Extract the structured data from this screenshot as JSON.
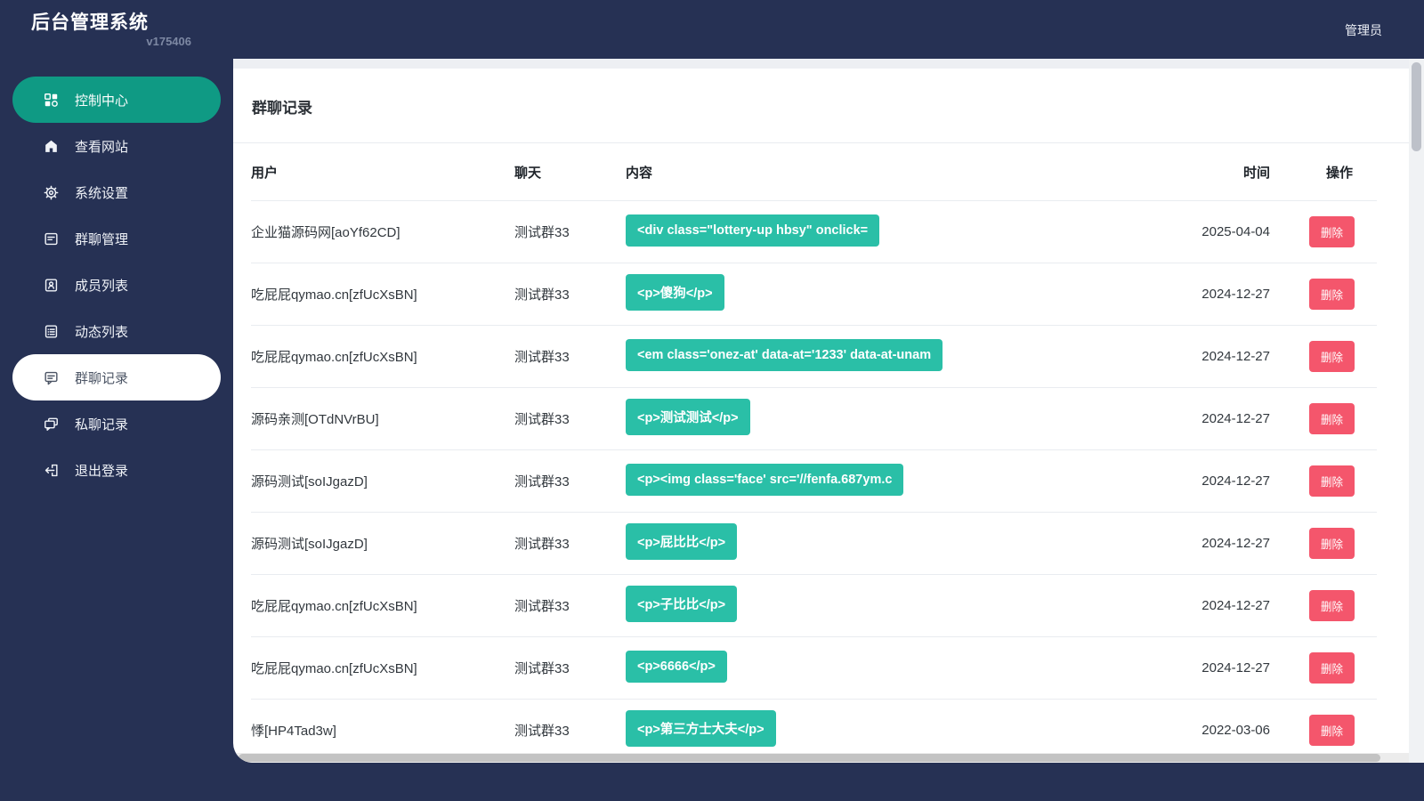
{
  "app": {
    "title": "后台管理系统",
    "version": "v175406",
    "user": "管理员"
  },
  "sidebar": {
    "items": [
      {
        "name": "control-center",
        "label": "控制中心",
        "icon": "dashboard-grid-icon",
        "state": "active-teal"
      },
      {
        "name": "view-site",
        "label": "查看网站",
        "icon": "home-icon",
        "state": ""
      },
      {
        "name": "system-settings",
        "label": "系统设置",
        "icon": "gear-icon",
        "state": ""
      },
      {
        "name": "group-manage",
        "label": "群聊管理",
        "icon": "document-lines-icon",
        "state": ""
      },
      {
        "name": "member-list",
        "label": "成员列表",
        "icon": "member-card-icon",
        "state": ""
      },
      {
        "name": "feed-list",
        "label": "动态列表",
        "icon": "list-table-icon",
        "state": ""
      },
      {
        "name": "group-chat-log",
        "label": "群聊记录",
        "icon": "chat-lines-icon",
        "state": "active-white"
      },
      {
        "name": "private-chat-log",
        "label": "私聊记录",
        "icon": "chat-double-icon",
        "state": ""
      },
      {
        "name": "logout",
        "label": "退出登录",
        "icon": "logout-icon",
        "state": ""
      }
    ]
  },
  "page": {
    "title": "群聊记录"
  },
  "table": {
    "headers": {
      "user": "用户",
      "chat": "聊天",
      "content": "内容",
      "time": "时间",
      "action": "操作"
    },
    "delete_label": "删除",
    "rows": [
      {
        "user": "企业猫源码网[aoYf62CD]",
        "chat": "测试群33",
        "content": "<div class=\"lottery-up hbsy\" onclick=",
        "time": "2025-04-04"
      },
      {
        "user": "吃屁屁qymao.cn[zfUcXsBN]",
        "chat": "测试群33",
        "content": "<p>傻狗</p>",
        "time": "2024-12-27"
      },
      {
        "user": "吃屁屁qymao.cn[zfUcXsBN]",
        "chat": "测试群33",
        "content": "<em class='onez-at' data-at='1233' data-at-unam",
        "time": "2024-12-27"
      },
      {
        "user": "源码亲测[OTdNVrBU]",
        "chat": "测试群33",
        "content": "<p>测试测试</p>",
        "time": "2024-12-27"
      },
      {
        "user": "源码测试[soIJgazD]",
        "chat": "测试群33",
        "content": "<p><img class='face' src='//fenfa.687ym.c",
        "time": "2024-12-27"
      },
      {
        "user": "源码测试[soIJgazD]",
        "chat": "测试群33",
        "content": "<p>屁比比</p>",
        "time": "2024-12-27"
      },
      {
        "user": "吃屁屁qymao.cn[zfUcXsBN]",
        "chat": "测试群33",
        "content": "<p>子比比</p>",
        "time": "2024-12-27"
      },
      {
        "user": "吃屁屁qymao.cn[zfUcXsBN]",
        "chat": "测试群33",
        "content": "<p>6666</p>",
        "time": "2024-12-27"
      },
      {
        "user": "悸[HP4Tad3w]",
        "chat": "测试群33",
        "content": "<p>第三方士大夫</p>",
        "time": "2022-03-06"
      }
    ]
  },
  "colors": {
    "navy": "#263154",
    "sidebar_active_teal": "#0f9a84",
    "badge_teal": "#2abfa7",
    "danger_red": "#f4566c"
  }
}
